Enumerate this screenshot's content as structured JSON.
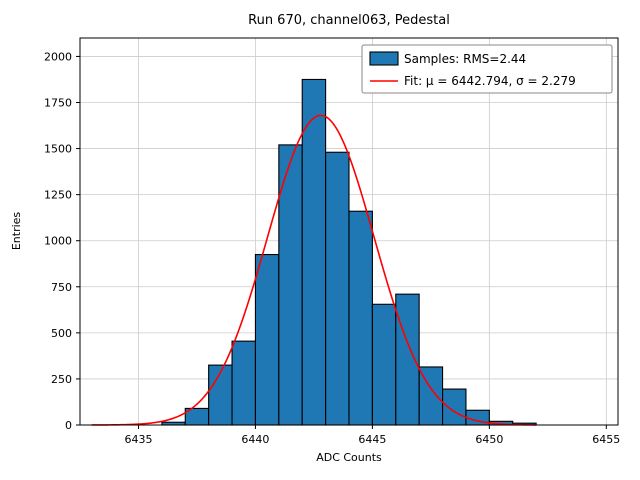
{
  "chart_data": {
    "type": "bar",
    "subtype": "histogram",
    "title": "Run 670, channel063, Pedestal",
    "xlabel": "ADC Counts",
    "ylabel": "Entries",
    "xlim": [
      6432.5,
      6455.5
    ],
    "ylim": [
      0,
      2100
    ],
    "xticks": [
      6435,
      6440,
      6445,
      6450,
      6455
    ],
    "yticks": [
      0,
      250,
      500,
      750,
      1000,
      1250,
      1500,
      1750,
      2000
    ],
    "grid": true,
    "legend_position": "upper right",
    "bar_color": "#1f77b4",
    "bar_edge_color": "#000000",
    "fit_color": "#ff0000",
    "bin_edges": [
      6436,
      6437,
      6438,
      6439,
      6440,
      6441,
      6442,
      6443,
      6444,
      6445,
      6446,
      6447,
      6448,
      6449,
      6450,
      6451,
      6452
    ],
    "counts": [
      15,
      90,
      325,
      455,
      925,
      1520,
      1875,
      1480,
      1160,
      655,
      710,
      315,
      195,
      80,
      20,
      10
    ],
    "rms": 2.44,
    "fit": {
      "mu": 6442.794,
      "sigma": 2.279,
      "amplitude": 1680,
      "x_start": 6433,
      "x_end": 6452
    },
    "legend": {
      "entries": [
        {
          "label": "Samples: RMS=2.44",
          "marker": "patch"
        },
        {
          "label": "Fit: μ = 6442.794, σ = 2.279",
          "marker": "line"
        }
      ]
    }
  }
}
